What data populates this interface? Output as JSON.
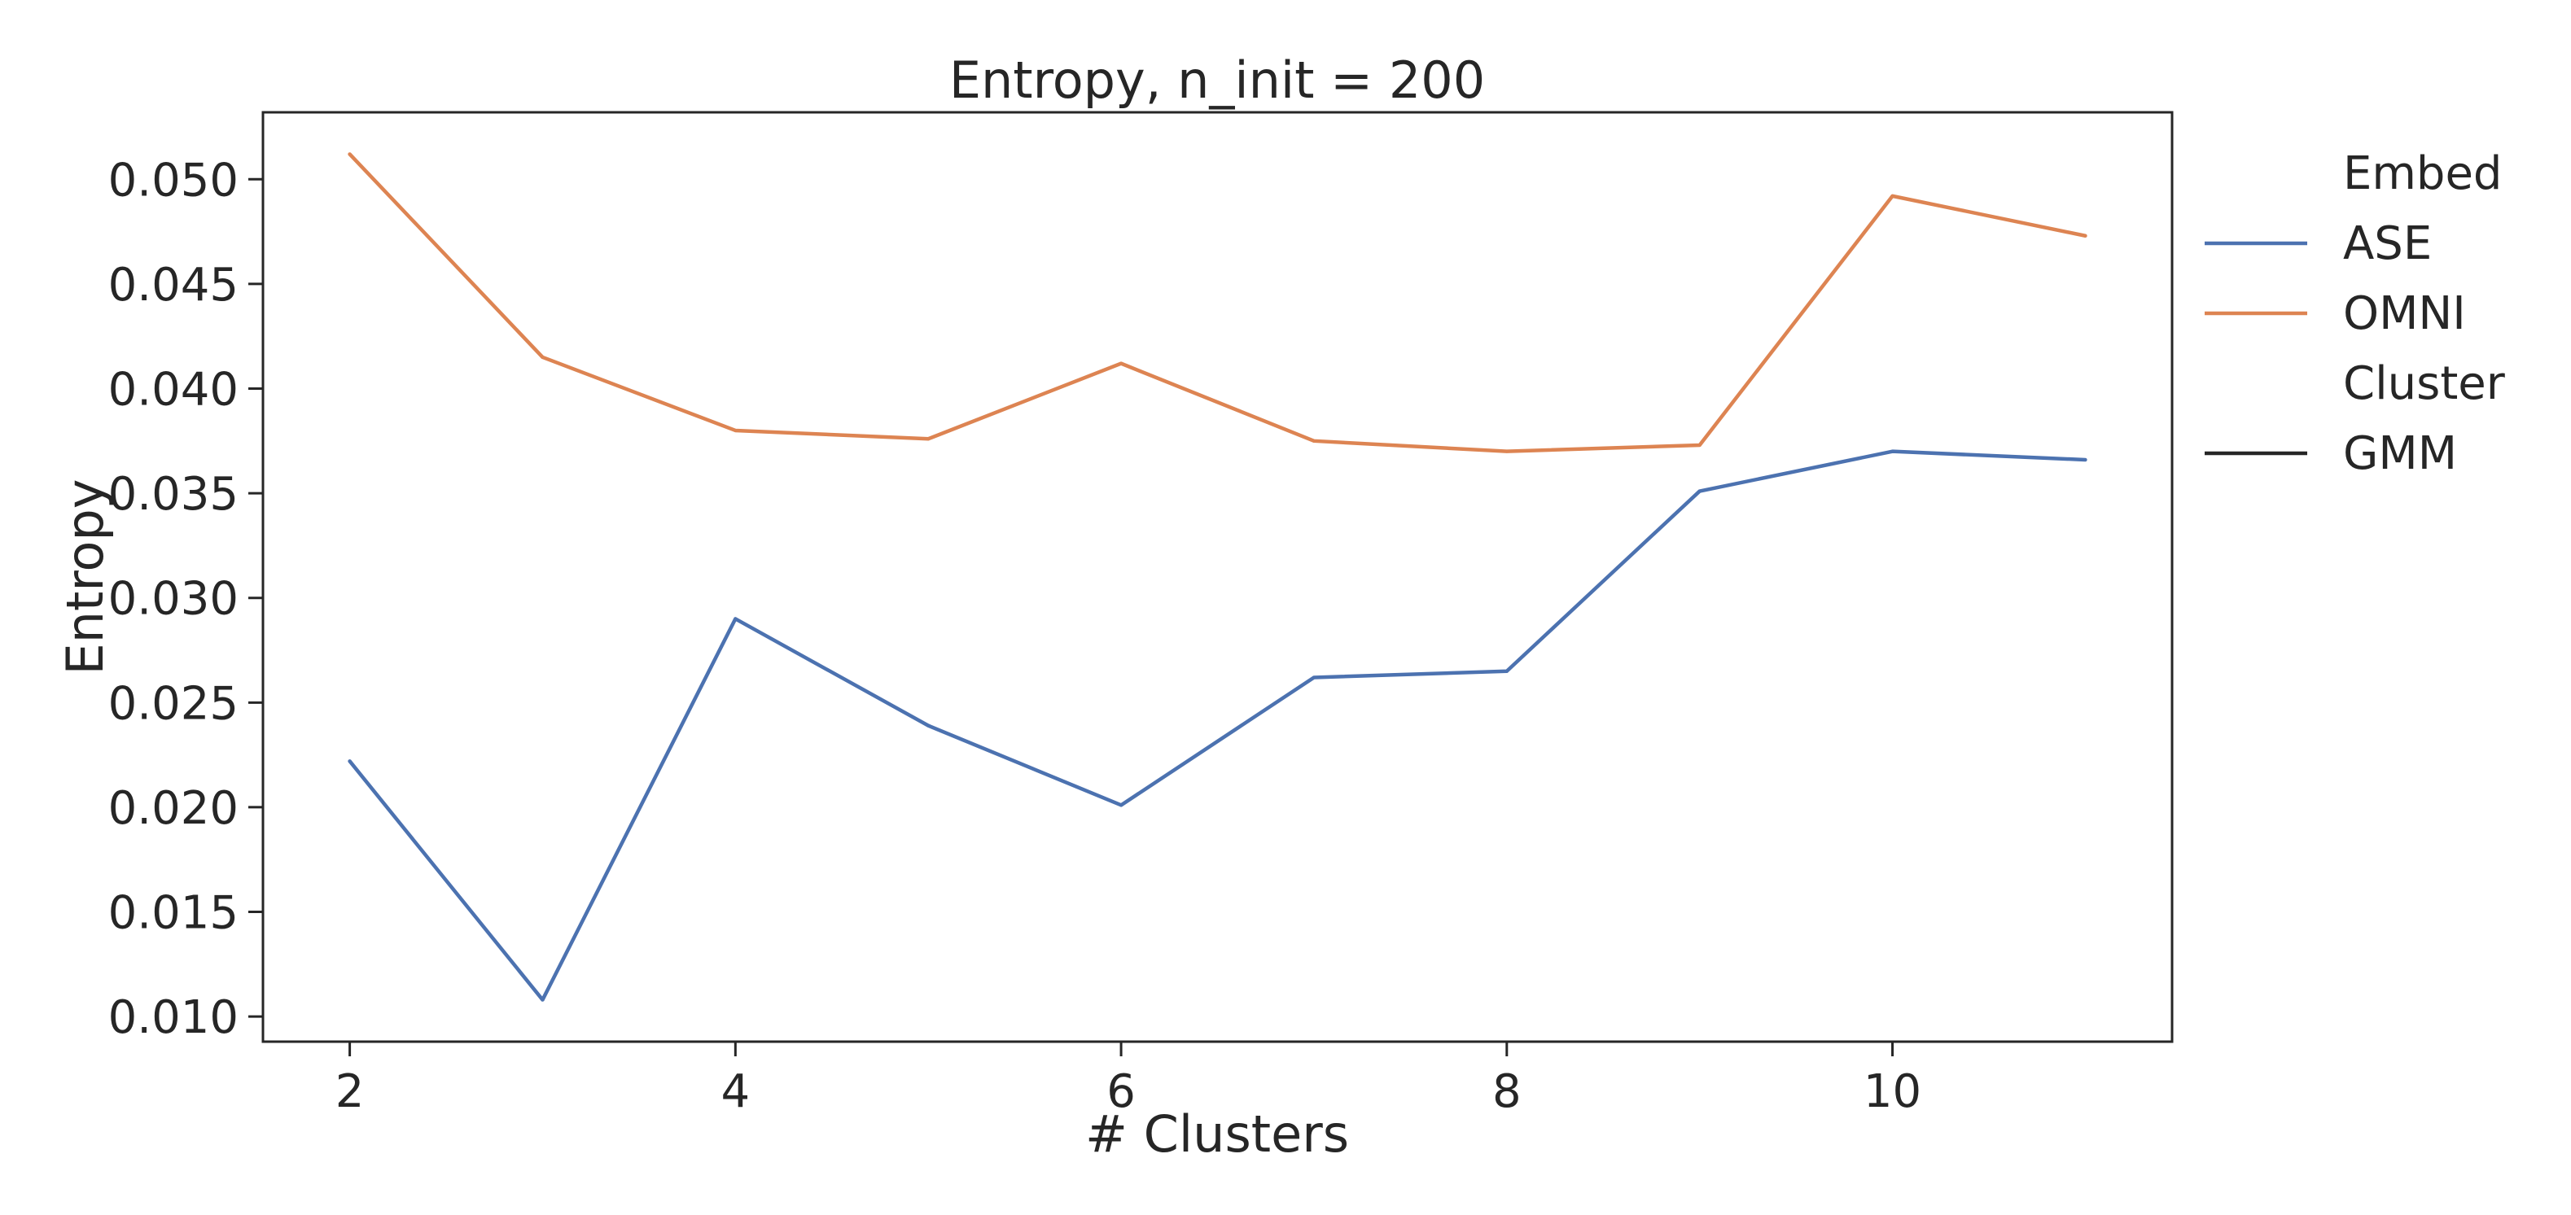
{
  "chart_data": {
    "type": "line",
    "title": "Entropy, n_init = 200",
    "xlabel": "# Clusters",
    "ylabel": "Entropy",
    "x": [
      2,
      3,
      4,
      5,
      6,
      7,
      8,
      9,
      10,
      11
    ],
    "xlim": [
      1.55,
      11.45
    ],
    "ylim": [
      0.0088,
      0.0532
    ],
    "xticks": [
      2,
      4,
      6,
      8,
      10
    ],
    "xtick_labels": [
      "2",
      "4",
      "6",
      "8",
      "10"
    ],
    "yticks": [
      0.01,
      0.015,
      0.02,
      0.025,
      0.03,
      0.035,
      0.04,
      0.045,
      0.05
    ],
    "ytick_labels": [
      "0.010",
      "0.015",
      "0.020",
      "0.025",
      "0.030",
      "0.035",
      "0.040",
      "0.045",
      "0.050"
    ],
    "grid": false,
    "legend_placement": "outside-right",
    "series": [
      {
        "name": "ASE",
        "color": "#4c72b0",
        "values": [
          0.0222,
          0.0108,
          0.029,
          0.0239,
          0.0201,
          0.0262,
          0.0265,
          0.0351,
          0.037,
          0.0366
        ]
      },
      {
        "name": "OMNI",
        "color": "#dd8452",
        "values": [
          0.0512,
          0.0415,
          0.038,
          0.0376,
          0.0412,
          0.0375,
          0.037,
          0.0373,
          0.0492,
          0.0473
        ]
      }
    ],
    "legend": {
      "sections": [
        {
          "heading": "Embed",
          "entries": [
            {
              "label": "ASE",
              "color": "#4c72b0"
            },
            {
              "label": "OMNI",
              "color": "#dd8452"
            }
          ]
        },
        {
          "heading": "Cluster",
          "entries": [
            {
              "label": "GMM",
              "color": "#262626"
            }
          ]
        }
      ]
    }
  }
}
